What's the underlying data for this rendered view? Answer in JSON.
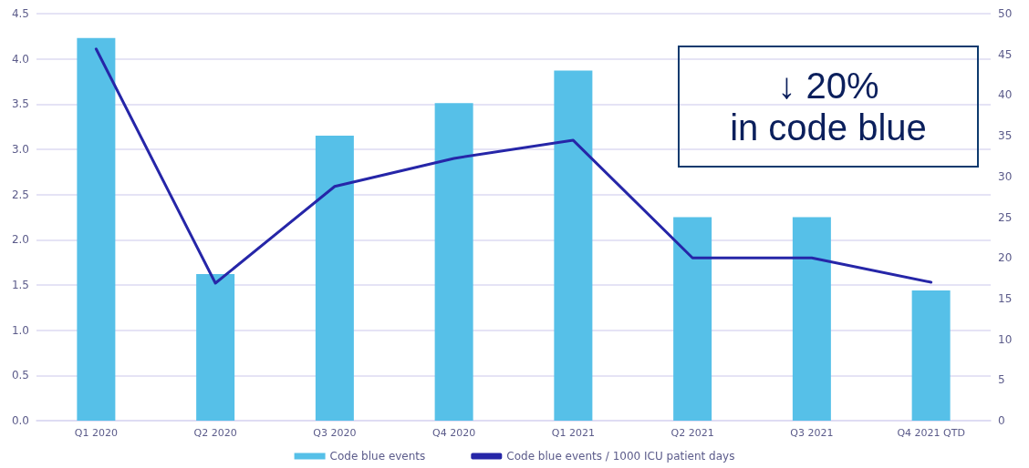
{
  "chart_data": {
    "type": "bar",
    "categories": [
      "Q1 2020",
      "Q2 2020",
      "Q3 2020",
      "Q4 2020",
      "Q1 2021",
      "Q2 2021",
      "Q3 2021",
      "Q4 2021 QTD"
    ],
    "series": [
      {
        "name": "Code blue events",
        "axis": "y2",
        "color": "#56c0e8",
        "values": [
          47,
          18,
          35,
          39,
          43,
          25,
          25,
          16
        ]
      },
      {
        "name": "Code blue events / 1000 ICU patient days",
        "type": "line",
        "color": "#2626a8",
        "values": [
          4.11,
          1.52,
          2.59,
          2.9,
          3.1,
          1.8,
          1.8,
          1.53
        ]
      }
    ],
    "ylim": [
      0,
      4.5
    ],
    "yticks": [
      {
        "value": 0,
        "label": "0.0"
      },
      {
        "value": 0.5,
        "label": "0.5"
      },
      {
        "value": 1,
        "label": "1.0"
      },
      {
        "value": 1.5,
        "label": "1.5"
      },
      {
        "value": 2,
        "label": "2.0"
      },
      {
        "value": 2.5,
        "label": "2.5"
      },
      {
        "value": 3,
        "label": "3.0"
      },
      {
        "value": 3.5,
        "label": "3.5"
      },
      {
        "value": 4,
        "label": "4.0"
      },
      {
        "value": 4.5,
        "label": "4.5"
      }
    ],
    "y2lim": [
      0,
      50
    ],
    "y2ticks": [
      0,
      5,
      10,
      15,
      20,
      25,
      30,
      35,
      40,
      45,
      50
    ],
    "grid": "y",
    "legend": "bottom",
    "marker": "none",
    "line_style": "solid",
    "annotations": [
      "↓ 20%",
      "in code blue"
    ]
  }
}
